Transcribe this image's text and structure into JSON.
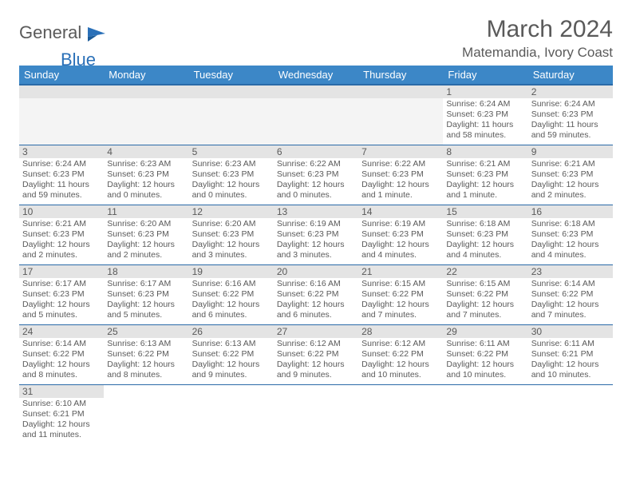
{
  "logo": {
    "text1": "General",
    "text2": "Blue",
    "icon_color": "#2a70b8"
  },
  "title": "March 2024",
  "location": "Matemandia, Ivory Coast",
  "colors": {
    "header_bg": "#3c87c7",
    "header_border": "#2a6aa8",
    "daynum_bg": "#e4e4e4",
    "empty_bg": "#f4f4f4",
    "text": "#5a5a5a",
    "accent": "#2a70b8",
    "white": "#ffffff"
  },
  "day_headers": [
    "Sunday",
    "Monday",
    "Tuesday",
    "Wednesday",
    "Thursday",
    "Friday",
    "Saturday"
  ],
  "first_weekday_index": 5,
  "days": [
    {
      "n": 1,
      "sr": "6:24 AM",
      "ss": "6:23 PM",
      "dl": "11 hours and 58 minutes."
    },
    {
      "n": 2,
      "sr": "6:24 AM",
      "ss": "6:23 PM",
      "dl": "11 hours and 59 minutes."
    },
    {
      "n": 3,
      "sr": "6:24 AM",
      "ss": "6:23 PM",
      "dl": "11 hours and 59 minutes."
    },
    {
      "n": 4,
      "sr": "6:23 AM",
      "ss": "6:23 PM",
      "dl": "12 hours and 0 minutes."
    },
    {
      "n": 5,
      "sr": "6:23 AM",
      "ss": "6:23 PM",
      "dl": "12 hours and 0 minutes."
    },
    {
      "n": 6,
      "sr": "6:22 AM",
      "ss": "6:23 PM",
      "dl": "12 hours and 0 minutes."
    },
    {
      "n": 7,
      "sr": "6:22 AM",
      "ss": "6:23 PM",
      "dl": "12 hours and 1 minute."
    },
    {
      "n": 8,
      "sr": "6:21 AM",
      "ss": "6:23 PM",
      "dl": "12 hours and 1 minute."
    },
    {
      "n": 9,
      "sr": "6:21 AM",
      "ss": "6:23 PM",
      "dl": "12 hours and 2 minutes."
    },
    {
      "n": 10,
      "sr": "6:21 AM",
      "ss": "6:23 PM",
      "dl": "12 hours and 2 minutes."
    },
    {
      "n": 11,
      "sr": "6:20 AM",
      "ss": "6:23 PM",
      "dl": "12 hours and 2 minutes."
    },
    {
      "n": 12,
      "sr": "6:20 AM",
      "ss": "6:23 PM",
      "dl": "12 hours and 3 minutes."
    },
    {
      "n": 13,
      "sr": "6:19 AM",
      "ss": "6:23 PM",
      "dl": "12 hours and 3 minutes."
    },
    {
      "n": 14,
      "sr": "6:19 AM",
      "ss": "6:23 PM",
      "dl": "12 hours and 4 minutes."
    },
    {
      "n": 15,
      "sr": "6:18 AM",
      "ss": "6:23 PM",
      "dl": "12 hours and 4 minutes."
    },
    {
      "n": 16,
      "sr": "6:18 AM",
      "ss": "6:23 PM",
      "dl": "12 hours and 4 minutes."
    },
    {
      "n": 17,
      "sr": "6:17 AM",
      "ss": "6:23 PM",
      "dl": "12 hours and 5 minutes."
    },
    {
      "n": 18,
      "sr": "6:17 AM",
      "ss": "6:23 PM",
      "dl": "12 hours and 5 minutes."
    },
    {
      "n": 19,
      "sr": "6:16 AM",
      "ss": "6:22 PM",
      "dl": "12 hours and 6 minutes."
    },
    {
      "n": 20,
      "sr": "6:16 AM",
      "ss": "6:22 PM",
      "dl": "12 hours and 6 minutes."
    },
    {
      "n": 21,
      "sr": "6:15 AM",
      "ss": "6:22 PM",
      "dl": "12 hours and 7 minutes."
    },
    {
      "n": 22,
      "sr": "6:15 AM",
      "ss": "6:22 PM",
      "dl": "12 hours and 7 minutes."
    },
    {
      "n": 23,
      "sr": "6:14 AM",
      "ss": "6:22 PM",
      "dl": "12 hours and 7 minutes."
    },
    {
      "n": 24,
      "sr": "6:14 AM",
      "ss": "6:22 PM",
      "dl": "12 hours and 8 minutes."
    },
    {
      "n": 25,
      "sr": "6:13 AM",
      "ss": "6:22 PM",
      "dl": "12 hours and 8 minutes."
    },
    {
      "n": 26,
      "sr": "6:13 AM",
      "ss": "6:22 PM",
      "dl": "12 hours and 9 minutes."
    },
    {
      "n": 27,
      "sr": "6:12 AM",
      "ss": "6:22 PM",
      "dl": "12 hours and 9 minutes."
    },
    {
      "n": 28,
      "sr": "6:12 AM",
      "ss": "6:22 PM",
      "dl": "12 hours and 10 minutes."
    },
    {
      "n": 29,
      "sr": "6:11 AM",
      "ss": "6:22 PM",
      "dl": "12 hours and 10 minutes."
    },
    {
      "n": 30,
      "sr": "6:11 AM",
      "ss": "6:21 PM",
      "dl": "12 hours and 10 minutes."
    },
    {
      "n": 31,
      "sr": "6:10 AM",
      "ss": "6:21 PM",
      "dl": "12 hours and 11 minutes."
    }
  ],
  "labels": {
    "sunrise": "Sunrise: ",
    "sunset": "Sunset: ",
    "daylight": "Daylight: "
  }
}
